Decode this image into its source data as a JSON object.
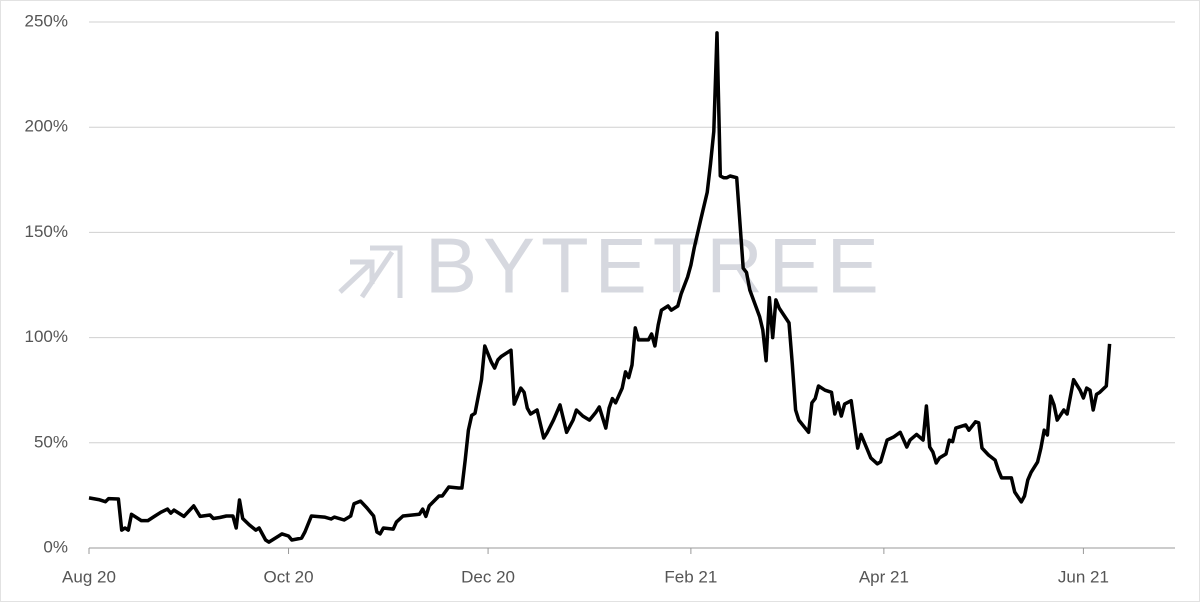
{
  "chart_data": {
    "type": "line",
    "watermark": "BYTETREE",
    "color": "#000000",
    "grid": true,
    "xlim": [
      0,
      332
    ],
    "xticks": [
      {
        "value": 0,
        "label": "Aug 20"
      },
      {
        "value": 61,
        "label": "Oct 20"
      },
      {
        "value": 122,
        "label": "Dec 20"
      },
      {
        "value": 184,
        "label": "Feb 21"
      },
      {
        "value": 243,
        "label": "Apr 21"
      },
      {
        "value": 304,
        "label": "Jun 21"
      }
    ],
    "ylim": [
      0,
      250
    ],
    "yticks": [
      {
        "value": 0,
        "label": "0%"
      },
      {
        "value": 50,
        "label": "50%"
      },
      {
        "value": 100,
        "label": "100%"
      },
      {
        "value": 150,
        "label": "150%"
      },
      {
        "value": 200,
        "label": "200%"
      },
      {
        "value": 250,
        "label": "250%"
      }
    ],
    "x": [
      0,
      3,
      5,
      6,
      9,
      10,
      11,
      12,
      13,
      16,
      18,
      20,
      22,
      24,
      25,
      26,
      29,
      32,
      34,
      37,
      38,
      40,
      42,
      44,
      45,
      46,
      47,
      49,
      51,
      52,
      54,
      55,
      58,
      59,
      61,
      62,
      65,
      66,
      68,
      72,
      74,
      75,
      78,
      80,
      81,
      83,
      85,
      87,
      88,
      89,
      90,
      93,
      94,
      96,
      101,
      102,
      103,
      104,
      107,
      108,
      110,
      113,
      114,
      115,
      116,
      117,
      118,
      120,
      121,
      123,
      124,
      125,
      126,
      128,
      129,
      130,
      131,
      132,
      133,
      134,
      135,
      137,
      139,
      140,
      142,
      144,
      146,
      148,
      149,
      151,
      153,
      155,
      156,
      158,
      159,
      160,
      161,
      163,
      164,
      165,
      166,
      167,
      168,
      171,
      172,
      173,
      174,
      175,
      176,
      177,
      178,
      180,
      181,
      183,
      184,
      185,
      187,
      189,
      190,
      191,
      192,
      193,
      194,
      195,
      196,
      198,
      200,
      201,
      202,
      205,
      206,
      207,
      208,
      209,
      210,
      211,
      214,
      215,
      216,
      217,
      220,
      221,
      222,
      223,
      225,
      227,
      228,
      229,
      230,
      231,
      233,
      235,
      236,
      238,
      239,
      241,
      242,
      244,
      246,
      248,
      250,
      251,
      253,
      255,
      256,
      257,
      258,
      259,
      260,
      262,
      263,
      264,
      265,
      268,
      269,
      271,
      272,
      273,
      275,
      277,
      278,
      279,
      282,
      283,
      285,
      286,
      287,
      288,
      290,
      291,
      292,
      293,
      294,
      295,
      296,
      298,
      299,
      301,
      303,
      304,
      305,
      306,
      307,
      308,
      309,
      311,
      312
    ],
    "values": [
      23.8,
      23,
      22,
      23.5,
      23.3,
      8.5,
      9.5,
      8.5,
      16,
      13,
      13,
      15,
      17,
      18.5,
      16.6,
      18,
      15,
      20,
      15,
      15.7,
      14,
      14.5,
      15.2,
      15.2,
      9.5,
      22.8,
      14,
      11,
      8.5,
      9.5,
      3.8,
      2.8,
      5.7,
      6.7,
      5.7,
      3.8,
      4.7,
      7.6,
      15.2,
      14.7,
      13.8,
      14.7,
      13.3,
      15.2,
      21,
      22.3,
      19,
      15.2,
      7.6,
      6.7,
      9.5,
      9,
      12.4,
      15.2,
      16,
      18.5,
      15,
      20,
      24.7,
      24.7,
      29,
      28.5,
      28.5,
      41.8,
      56,
      63,
      64,
      80,
      96,
      88.4,
      85.5,
      89.4,
      91,
      93,
      94,
      68.4,
      72.2,
      76,
      74,
      66.5,
      63.7,
      65.6,
      52.3,
      54.7,
      60.8,
      68,
      55,
      60.8,
      65.6,
      62.7,
      60.8,
      64.6,
      67,
      57,
      66.5,
      71,
      69,
      76,
      83.7,
      81,
      87,
      104.6,
      98.9,
      98.9,
      101.7,
      96,
      106,
      113,
      114,
      115,
      113,
      115,
      120.7,
      128.8,
      134.5,
      142.6,
      156,
      169,
      182.5,
      198,
      244.8,
      176.8,
      176,
      176,
      176.8,
      176,
      133,
      131,
      122.6,
      110,
      103.6,
      89,
      119,
      100,
      117.9,
      114,
      107,
      87.5,
      65.6,
      60.8,
      55,
      69,
      71,
      77,
      75,
      74,
      63.7,
      69,
      62.7,
      68.4,
      70,
      47.5,
      54,
      46.6,
      42.8,
      40,
      40.9,
      51.3,
      52.8,
      55,
      48,
      51.3,
      54,
      51.3,
      67.5,
      48,
      45.6,
      40.4,
      42.8,
      44.7,
      51.3,
      50.5,
      57,
      58.5,
      56,
      60,
      59.5,
      47.5,
      44.2,
      41.8,
      37,
      33.3,
      33.3,
      26.6,
      21.9,
      24.7,
      32.3,
      36,
      40.9,
      47.5,
      56,
      53.7,
      72.2,
      68,
      60.8,
      65.6,
      63.7,
      80,
      75,
      71.3,
      76,
      75,
      65.6,
      73,
      74,
      77,
      97
    ]
  }
}
